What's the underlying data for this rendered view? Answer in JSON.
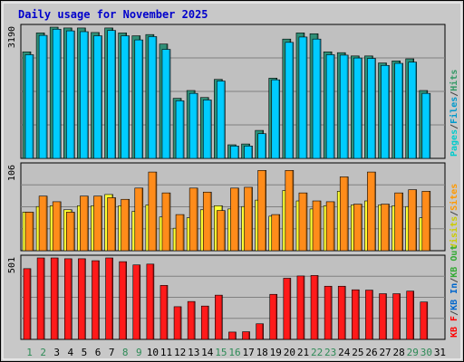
{
  "chart_data": {
    "type": "bar",
    "title": "Daily usage for November 2025",
    "categories": [
      "1",
      "2",
      "3",
      "4",
      "5",
      "6",
      "7",
      "8",
      "9",
      "10",
      "11",
      "12",
      "13",
      "14",
      "15",
      "16",
      "17",
      "18",
      "19",
      "20",
      "21",
      "22",
      "23",
      "24",
      "25",
      "26",
      "27",
      "28",
      "29",
      "30",
      "31"
    ],
    "weekend_days": [
      "1",
      "2",
      "8",
      "9",
      "15",
      "16",
      "22",
      "23",
      "29",
      "30"
    ],
    "panels": [
      {
        "id": "pages-files-hits",
        "max_label": "3190",
        "ylim": [
          0,
          3190
        ],
        "legend": [
          {
            "label": "Pages",
            "color": "#00cccc"
          },
          {
            "label": "/",
            "color": "#444444"
          },
          {
            "label": "Files",
            "color": "#0099cc"
          },
          {
            "label": "/",
            "color": "#444444"
          },
          {
            "label": "Hits",
            "color": "#339966"
          }
        ],
        "series": [
          {
            "name": "Hits",
            "color": "#2f8f77",
            "values": [
              2590,
              3050,
              3190,
              3170,
              3170,
              3060,
              3170,
              3050,
              2980,
              3010,
              2780,
              1460,
              1650,
              1480,
              1920,
              330,
              350,
              680,
              1950,
              2900,
              3050,
              3030,
              2590,
              2570,
              2490,
              2490,
              2320,
              2370,
              2420,
              1650
            ]
          },
          {
            "name": "Files",
            "color": "#00ccff",
            "values": [
              2520,
              2990,
              3140,
              3100,
              3080,
              2980,
              3110,
              2980,
              2880,
              2960,
              2650,
              1400,
              1580,
              1420,
              1880,
              300,
              300,
              600,
              1910,
              2820,
              2950,
              2900,
              2520,
              2510,
              2440,
              2430,
              2260,
              2310,
              2340,
              1580
            ]
          }
        ]
      },
      {
        "id": "visits-sites",
        "max_label": "106",
        "ylim": [
          0,
          106
        ],
        "legend": [
          {
            "label": "Visits",
            "color": "#cccc00"
          },
          {
            "label": "/",
            "color": "#444444"
          },
          {
            "label": "Sites",
            "color": "#ff9900"
          }
        ],
        "series": [
          {
            "name": "Visits",
            "color": "#ffff33",
            "values": [
              48,
              55,
              56,
              51,
              56,
              56,
              70,
              56,
              49,
              57,
              42,
              28,
              41,
              51,
              56,
              52,
              55,
              63,
              43,
              75,
              62,
              52,
              56,
              74,
              57,
              62,
              57,
              56,
              55,
              41
            ]
          },
          {
            "name": "Sites",
            "color": "#ff8c1a",
            "values": [
              48,
              68,
              61,
              48,
              68,
              68,
              66,
              64,
              78,
              98,
              72,
              45,
              78,
              73,
              50,
              78,
              79,
              100,
              45,
              100,
              72,
              62,
              61,
              92,
              58,
              98,
              58,
              72,
              76,
              74
            ]
          }
        ]
      },
      {
        "id": "kbytes",
        "max_label": "501",
        "ylim": [
          0,
          501
        ],
        "legend": [
          {
            "label": "KB F",
            "color": "#ff0000"
          },
          {
            "label": "/",
            "color": "#444444"
          },
          {
            "label": "KB In",
            "color": "#0066cc"
          },
          {
            "label": "/",
            "color": "#444444"
          },
          {
            "label": "KB Out",
            "color": "#33aa33"
          }
        ],
        "series": [
          {
            "name": "KB F",
            "color": "#ff1a1a",
            "values": [
              435,
              501,
              501,
              496,
              496,
              484,
              501,
              478,
              458,
              463,
              332,
              201,
              233,
              205,
              272,
              45,
              47,
              96,
              277,
              376,
              390,
              393,
              327,
              327,
              305,
              303,
              281,
              281,
              297,
              230
            ]
          }
        ]
      }
    ]
  }
}
